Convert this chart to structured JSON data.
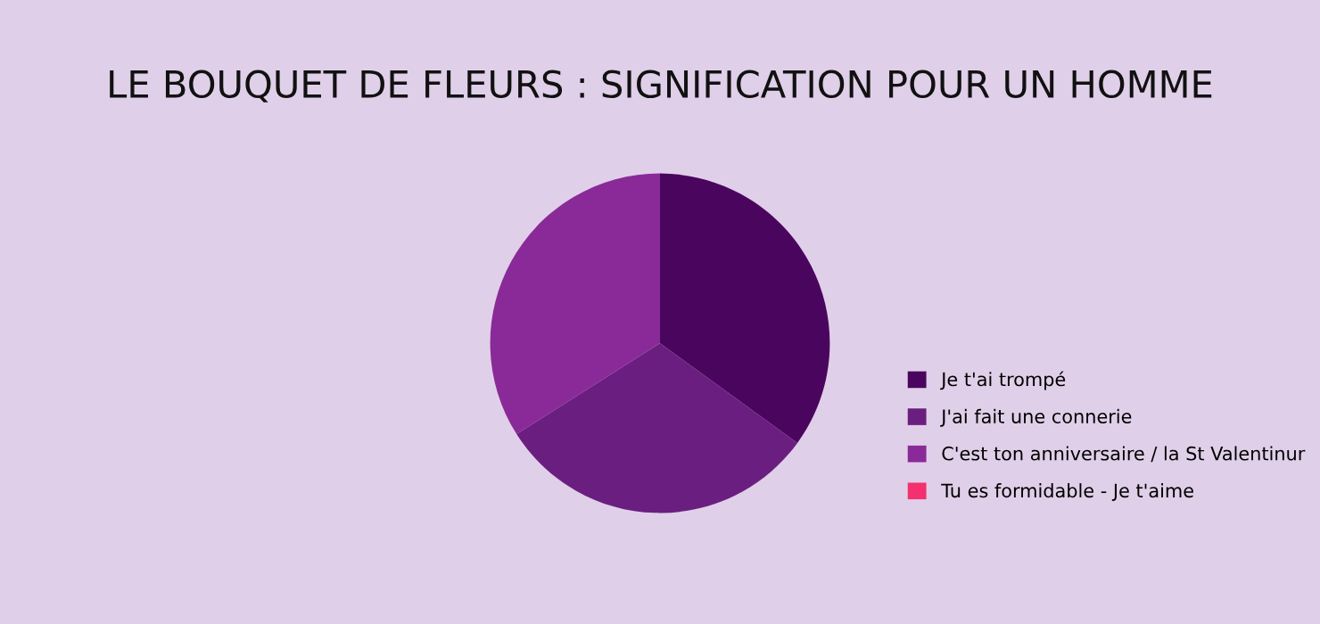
{
  "chart_data": {
    "type": "pie",
    "title": "LE BOUQUET DE FLEURS : SIGNIFICATION POUR UN HOMME",
    "categories": [
      "Je t'ai trompé",
      "J'ai fait une connerie",
      "C'est ton anniversaire / la St Valentinur",
      "Tu es formidable - Je t'aime"
    ],
    "values": [
      35,
      31,
      34,
      0
    ],
    "colors": [
      "#4a065e",
      "#6a1f80",
      "#8a2a98",
      "#f4306e"
    ],
    "legend": "bottom right"
  }
}
